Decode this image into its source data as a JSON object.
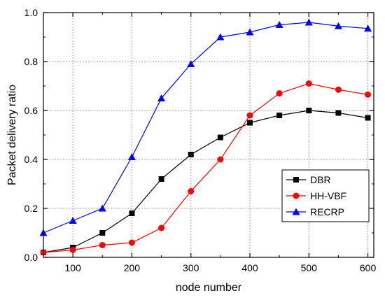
{
  "chart_data": {
    "type": "line",
    "title": "",
    "xlabel": "node number",
    "ylabel": "Packet delivery ratio",
    "xlim": [
      50,
      610
    ],
    "ylim": [
      0.0,
      1.0
    ],
    "x_ticks": [
      100,
      200,
      300,
      400,
      500,
      600
    ],
    "y_ticks": [
      0.0,
      0.2,
      0.4,
      0.6,
      0.8,
      1.0
    ],
    "x_tick_labels": [
      "100",
      "200",
      "300",
      "400",
      "500",
      "600"
    ],
    "y_tick_labels": [
      "0.0",
      "0.2",
      "0.4",
      "0.6",
      "0.8",
      "1.0"
    ],
    "grid": true,
    "legend_position": "bottom-right",
    "x": [
      50,
      100,
      150,
      200,
      250,
      300,
      350,
      400,
      450,
      500,
      550,
      600
    ],
    "series": [
      {
        "name": "DBR",
        "color": "#000000",
        "marker": "square",
        "values": [
          0.02,
          0.04,
          0.1,
          0.18,
          0.32,
          0.42,
          0.49,
          0.55,
          0.58,
          0.6,
          0.59,
          0.57
        ]
      },
      {
        "name": "HH-VBF",
        "color": "#ff0000",
        "marker": "circle",
        "values": [
          0.02,
          0.03,
          0.05,
          0.06,
          0.12,
          0.27,
          0.4,
          0.58,
          0.67,
          0.71,
          0.685,
          0.665
        ]
      },
      {
        "name": "RECRP",
        "color": "#0000ff",
        "marker": "triangle",
        "values": [
          0.1,
          0.15,
          0.2,
          0.41,
          0.65,
          0.79,
          0.9,
          0.92,
          0.95,
          0.96,
          0.945,
          0.935
        ]
      }
    ]
  }
}
